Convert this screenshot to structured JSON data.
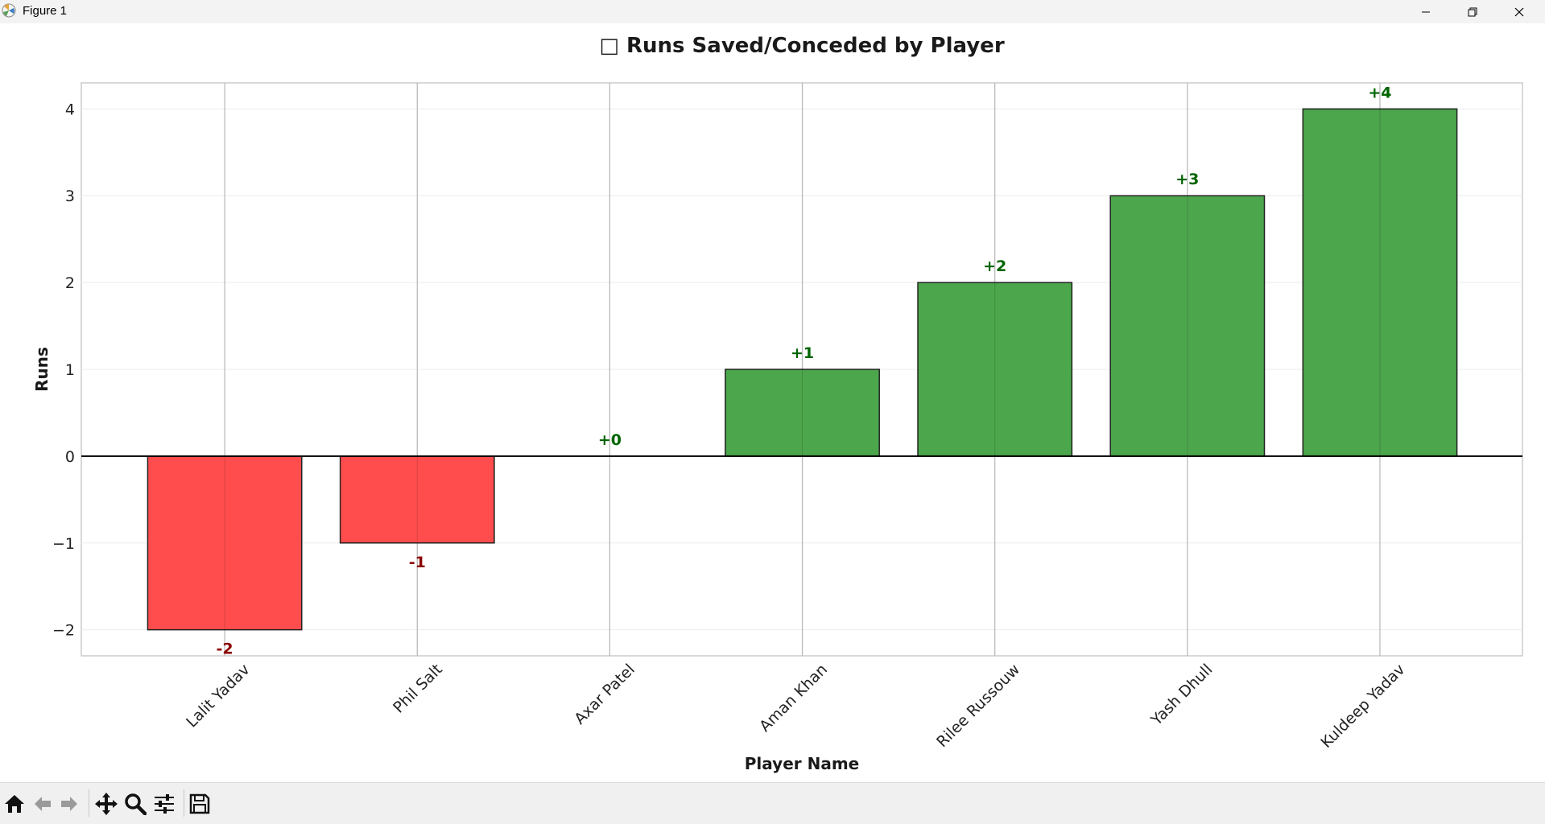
{
  "window": {
    "title": "Figure 1"
  },
  "toolbar": {
    "items": [
      "home-icon",
      "back-arrow-icon",
      "forward-arrow-icon",
      "pan-icon",
      "zoom-icon",
      "configure-subplots-icon",
      "save-icon"
    ]
  },
  "colors": {
    "negative_bar": "#ff4d4d",
    "positive_bar": "#4ca64c",
    "negative_label": "#8b0000",
    "positive_label": "#006400"
  },
  "chart_data": {
    "type": "bar",
    "title": "□ Runs Saved/Conceded by Player",
    "xlabel": "Player Name",
    "ylabel": "Runs",
    "categories": [
      "Lalit Yadav",
      "Phil Salt",
      "Axar Patel",
      "Aman Khan",
      "Rilee Russouw",
      "Yash Dhull",
      "Kuldeep Yadav"
    ],
    "values": [
      -2,
      -1,
      0,
      1,
      2,
      3,
      4
    ],
    "data_labels": [
      "-2",
      "-1",
      "+0",
      "+1",
      "+2",
      "+3",
      "+4"
    ],
    "yticks": [
      "−2",
      "−1",
      "0",
      "1",
      "2",
      "3",
      "4"
    ],
    "ylim": [
      -2.3,
      4.3
    ],
    "grid": true,
    "legend": "none"
  }
}
